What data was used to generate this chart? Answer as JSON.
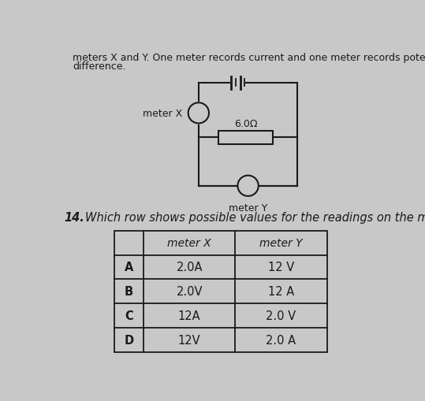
{
  "bg_color": "#c8c8c8",
  "page_color": "#e8e8e8",
  "text_color": "#1a1a1a",
  "intro_line1": "meters X and Y. One meter records current and one meter records potential",
  "intro_line2": "difference.",
  "question_number": "14.",
  "question_text": "Which row shows possible values for the readings on the meters?",
  "circuit": {
    "resistor_label": "6.0Ω",
    "meter_x_label": "meter X",
    "meter_y_label": "meter Y"
  },
  "table": {
    "col_headers": [
      "",
      "meter X",
      "meter Y"
    ],
    "rows": [
      [
        "A",
        "2.0A",
        "12 V"
      ],
      [
        "B",
        "2.0V",
        "12 A"
      ],
      [
        "C",
        "12A",
        "2.0 V"
      ],
      [
        "D",
        "12V",
        "2.0 A"
      ]
    ]
  }
}
